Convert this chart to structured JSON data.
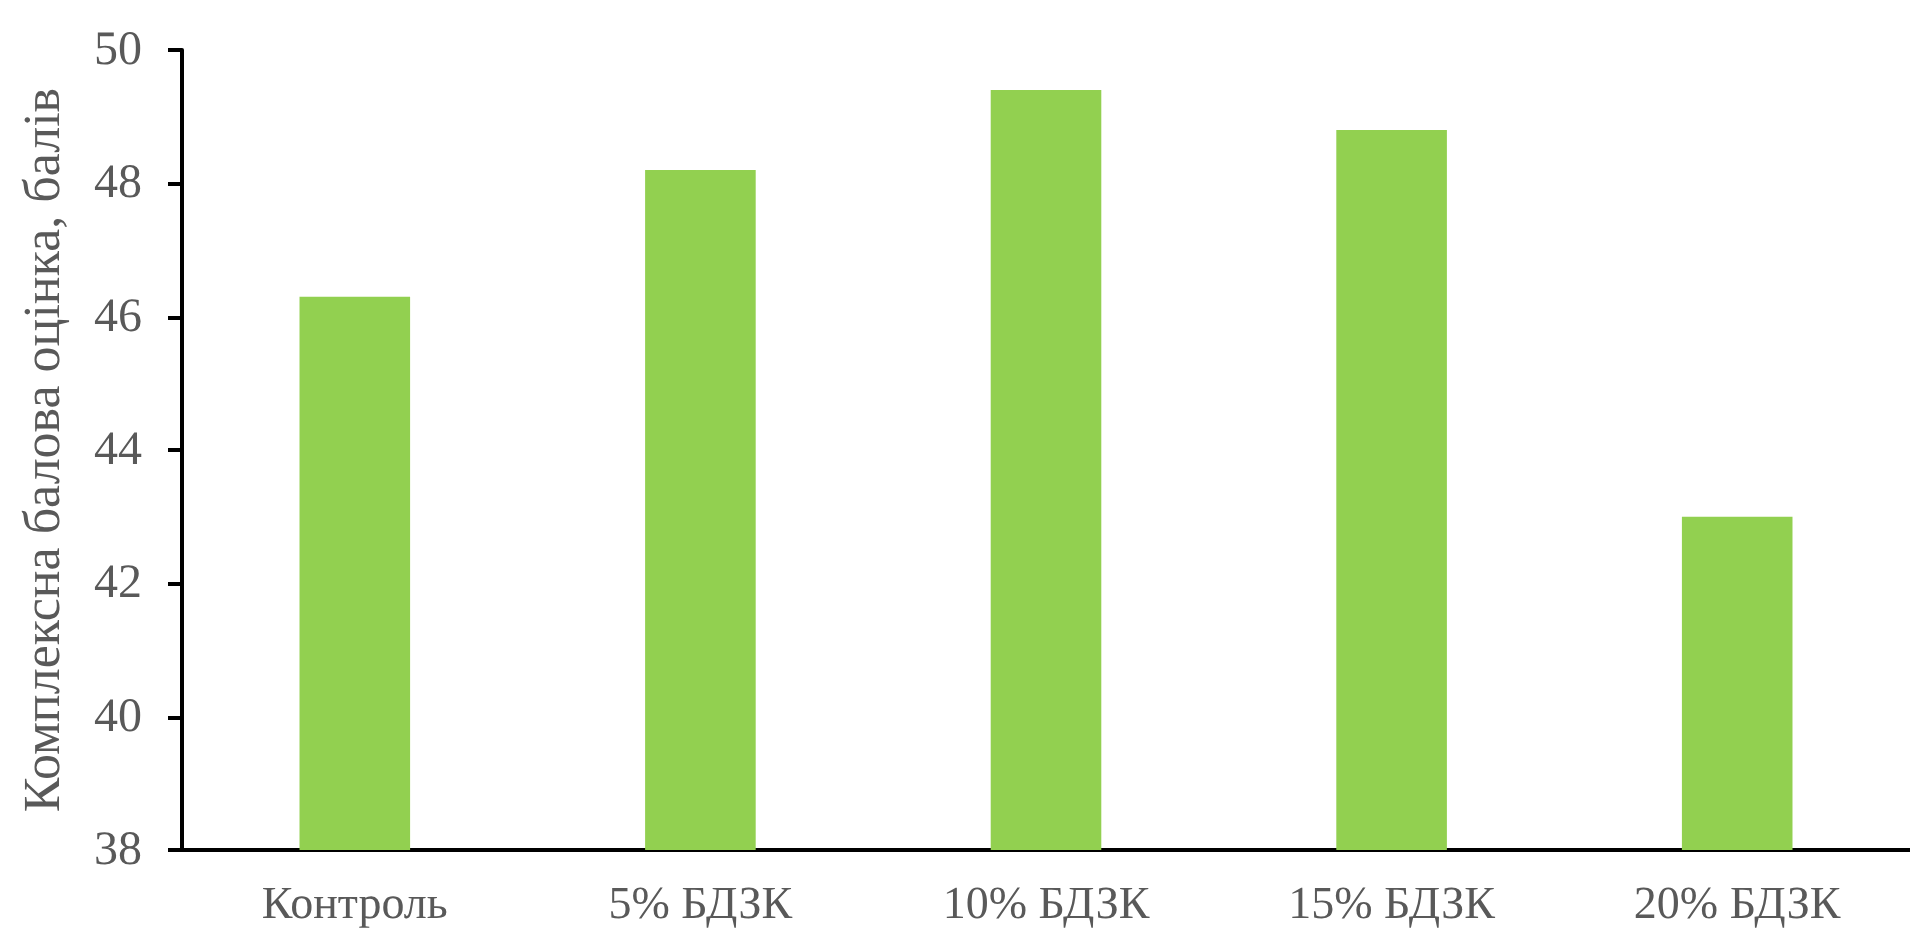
{
  "chart_data": {
    "type": "bar",
    "ylabel": "Комплексна балова оцінка, балів",
    "categories": [
      "Контроль",
      "5% БДЗК",
      "10% БДЗК",
      "15% БДЗК",
      "20% БДЗК"
    ],
    "values": [
      46.3,
      48.2,
      49.4,
      48.8,
      43.0
    ],
    "color": "#92d050",
    "ylim": [
      38,
      50
    ],
    "yticks": [
      38,
      40,
      42,
      44,
      46,
      48,
      50
    ],
    "grid": false
  }
}
